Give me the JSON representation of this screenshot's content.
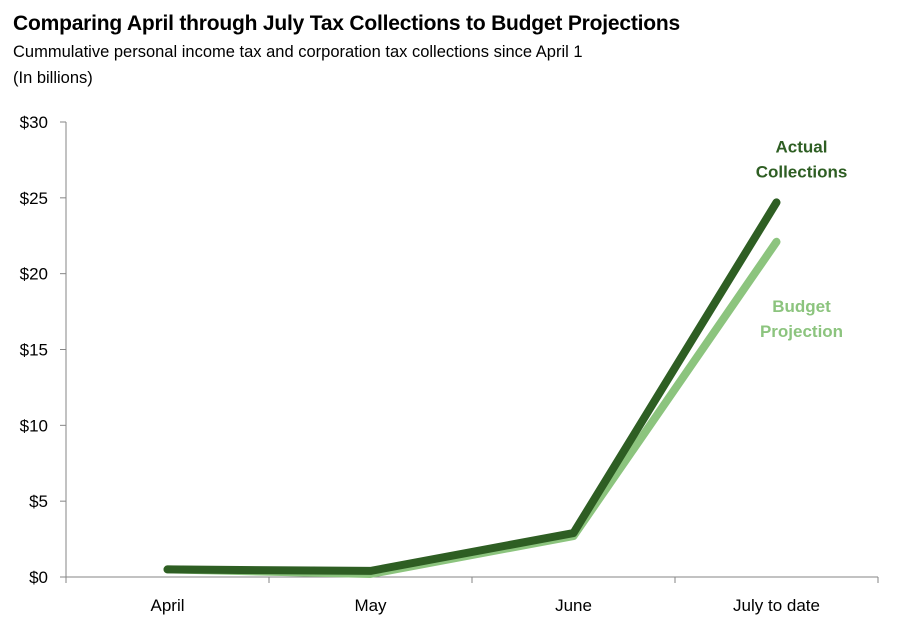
{
  "chart_data": {
    "type": "line",
    "title": "Comparing April through July Tax Collections to Budget Projections",
    "subtitle": "Cummulative personal income tax and corporation tax collections  since April 1",
    "unit_note": "(In billions)",
    "categories": [
      "April",
      "May",
      "June",
      "July to date"
    ],
    "ylim": [
      0,
      30
    ],
    "y_ticks": [
      0,
      5,
      10,
      15,
      20,
      25,
      30
    ],
    "y_tick_labels": [
      "$0",
      "$5",
      "$10",
      "$15",
      "$20",
      "$25",
      "$30"
    ],
    "grid": false,
    "series": [
      {
        "name_lines": [
          "Budget",
          "Projection"
        ],
        "color": "#8cc47e",
        "values": [
          0.5,
          0.2,
          2.7,
          22.1
        ]
      },
      {
        "name_lines": [
          "Actual",
          "Collections"
        ],
        "color": "#2e5e23",
        "values": [
          0.5,
          0.4,
          2.9,
          24.7
        ]
      }
    ]
  }
}
